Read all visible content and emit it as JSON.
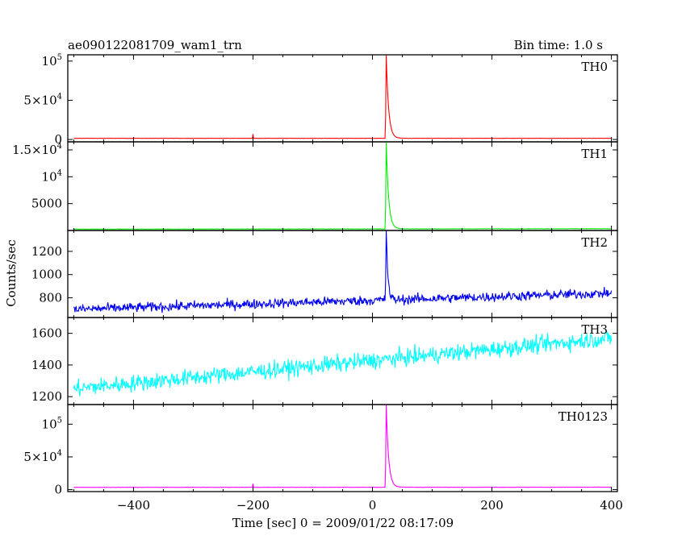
{
  "header": {
    "title": "ae090122081709_wam1_trn",
    "bin_time": "Bin time: 1.0 s"
  },
  "axes": {
    "xlabel": "Time [sec] 0 = 2009/01/22 08:17:09",
    "ylabel": "Counts/sec"
  },
  "chart_data": {
    "type": "line",
    "title": "ae090122081709_wam1_trn",
    "xlabel": "Time [sec] 0 = 2009/01/22 08:17:09",
    "ylabel": "Counts/sec",
    "xlim": [
      -510,
      410
    ],
    "x_ticks": [
      -400,
      -200,
      0,
      200,
      400
    ],
    "x_tick_labels": [
      "−400",
      "−200",
      "0",
      "200",
      "400"
    ],
    "bin_time_s": 1.0,
    "panels": [
      {
        "name": "TH0",
        "color": "#ff0000",
        "ylim": [
          -3000,
          108000
        ],
        "ticks": [
          {
            "value": 0,
            "base": "0",
            "exp": ""
          },
          {
            "value": 50000,
            "base": "5×10",
            "exp": "4"
          },
          {
            "value": 100000,
            "base": "10",
            "exp": "5"
          }
        ],
        "baseline": 1500,
        "baseline_end": 1500,
        "noise": 150,
        "peak_time": 23,
        "peak_value": 108000,
        "decay_s": 4,
        "extra_spikes": [
          {
            "t": -200,
            "v": 7000
          }
        ]
      },
      {
        "name": "TH1",
        "color": "#00ee00",
        "ylim": [
          0,
          16500
        ],
        "ticks": [
          {
            "value": 5000,
            "base": "5000",
            "exp": ""
          },
          {
            "value": 10000,
            "base": "10",
            "exp": "4"
          },
          {
            "value": 15000,
            "base": "1.5×10",
            "exp": "4"
          }
        ],
        "baseline": 250,
        "baseline_end": 330,
        "noise": 25,
        "peak_time": 23,
        "peak_value": 16500,
        "decay_s": 4,
        "extra_spikes": []
      },
      {
        "name": "TH2",
        "color": "#0000ee",
        "ylim": [
          630,
          1380
        ],
        "ticks": [
          {
            "value": 800,
            "base": "800",
            "exp": ""
          },
          {
            "value": 1000,
            "base": "1000",
            "exp": ""
          },
          {
            "value": 1200,
            "base": "1200",
            "exp": ""
          }
        ],
        "baseline": 700,
        "baseline_end": 840,
        "noise": 30,
        "peak_time": 23,
        "peak_value": 1370,
        "decay_s": 2.5,
        "extra_spikes": []
      },
      {
        "name": "TH3",
        "color": "#00ffff",
        "ylim": [
          1150,
          1700
        ],
        "ticks": [
          {
            "value": 1200,
            "base": "1200",
            "exp": ""
          },
          {
            "value": 1400,
            "base": "1400",
            "exp": ""
          },
          {
            "value": 1600,
            "base": "1600",
            "exp": ""
          }
        ],
        "baseline": 1250,
        "baseline_end": 1570,
        "noise": 38,
        "peak_time": null,
        "peak_value": null,
        "decay_s": 0,
        "extra_spikes": []
      },
      {
        "name": "TH0123",
        "color": "#ff00ff",
        "ylim": [
          -3000,
          130000
        ],
        "ticks": [
          {
            "value": 0,
            "base": "0",
            "exp": ""
          },
          {
            "value": 50000,
            "base": "5×10",
            "exp": "4"
          },
          {
            "value": 100000,
            "base": "10",
            "exp": "5"
          }
        ],
        "baseline": 3500,
        "baseline_end": 3700,
        "noise": 200,
        "peak_time": 23,
        "peak_value": 130000,
        "decay_s": 4,
        "extra_spikes": [
          {
            "t": -200,
            "v": 9000
          }
        ]
      }
    ]
  }
}
